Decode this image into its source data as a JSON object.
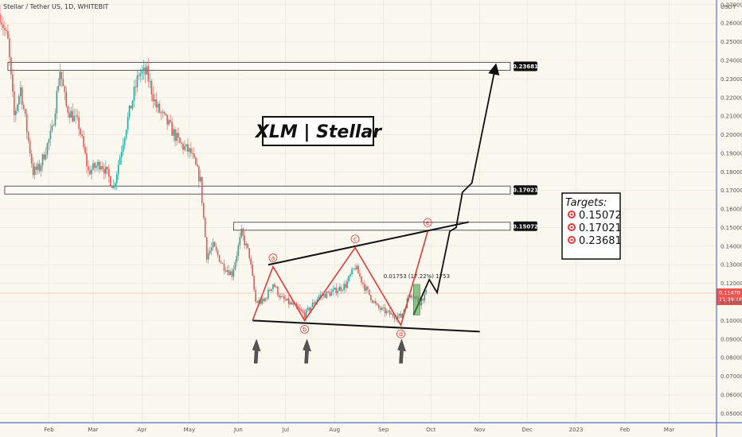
{
  "header": {
    "symbol": "Stellar / Tether US, 1D, WHITEBIT"
  },
  "colors": {
    "up": "#26a69a",
    "down": "#ef5350",
    "wave": "#e53935",
    "background": "#faf7ee",
    "grid": "#e8e4d8",
    "border": "#3f51b5",
    "price_line": "#ef9a9a"
  },
  "chart_data": {
    "type": "candlestick",
    "currency": "USDT",
    "y_ticks": [
      "0.27000",
      "0.26000",
      "0.25000",
      "0.24000",
      "0.23000",
      "0.22000",
      "0.21000",
      "0.20000",
      "0.19000",
      "0.18000",
      "0.17000",
      "0.16000",
      "0.15000",
      "0.14000",
      "0.13000",
      "0.12000",
      "0.11000",
      "0.10000",
      "0.09000",
      "0.08000",
      "0.07000",
      "0.06000",
      "0.05000"
    ],
    "y_range": [
      0.045,
      0.2725
    ],
    "x_ticks": [
      "Feb",
      "Mar",
      "Apr",
      "May",
      "Jun",
      "Jul",
      "Aug",
      "Sep",
      "Oct",
      "Nov",
      "Dec",
      "2023",
      "Feb",
      "Mar"
    ],
    "x_start": "2022-01-01",
    "x_end": "2023-03-31",
    "levels": [
      0.23681,
      0.17021,
      0.15072
    ],
    "level_labels": [
      "0.23681",
      "0.17021",
      "0.15072"
    ],
    "current_price": "0.11470",
    "countdown": "11:39:18",
    "title": "XLM | Stellar",
    "targets_title": "Targets:",
    "targets": [
      "0.15072",
      "0.17021",
      "0.23681"
    ],
    "wave_labels": [
      "a",
      "b",
      "c",
      "d",
      "e"
    ],
    "measurement": "0.01753 (17.22%) 1753",
    "wave_points": [
      {
        "date": "2022-06-10",
        "price": 0.1
      },
      {
        "date": "2022-06-23",
        "price": 0.129
      },
      {
        "date": "2022-07-13",
        "price": 0.1
      },
      {
        "date": "2022-08-14",
        "price": 0.1392
      },
      {
        "date": "2022-09-12",
        "price": 0.0975
      },
      {
        "date": "2022-09-29",
        "price": 0.148
      }
    ],
    "triangle_upper": [
      {
        "date": "2022-06-20",
        "price": 0.13
      },
      {
        "date": "2022-10-25",
        "price": 0.153
      }
    ],
    "triangle_lower": [
      {
        "date": "2022-06-10",
        "price": 0.1
      },
      {
        "date": "2022-11-01",
        "price": 0.094
      }
    ],
    "projection": [
      {
        "date": "2022-09-20",
        "price": 0.103
      },
      {
        "date": "2022-09-30",
        "price": 0.122
      },
      {
        "date": "2022-10-05",
        "price": 0.115
      },
      {
        "date": "2022-10-13",
        "price": 0.148
      },
      {
        "date": "2022-10-17",
        "price": 0.15
      },
      {
        "date": "2022-10-21",
        "price": 0.169
      },
      {
        "date": "2022-10-27",
        "price": 0.174
      },
      {
        "date": "2022-11-11",
        "price": 0.237
      }
    ],
    "arrow_dates": [
      "2022-06-12",
      "2022-07-14",
      "2022-09-12"
    ],
    "anchors": [
      {
        "date": "2022-01-01",
        "price": 0.265
      },
      {
        "date": "2022-01-06",
        "price": 0.25
      },
      {
        "date": "2022-01-10",
        "price": 0.21
      },
      {
        "date": "2022-01-14",
        "price": 0.225
      },
      {
        "date": "2022-01-22",
        "price": 0.18
      },
      {
        "date": "2022-01-26",
        "price": 0.182
      },
      {
        "date": "2022-02-03",
        "price": 0.202
      },
      {
        "date": "2022-02-08",
        "price": 0.235
      },
      {
        "date": "2022-02-12",
        "price": 0.215
      },
      {
        "date": "2022-02-20",
        "price": 0.205
      },
      {
        "date": "2022-02-26",
        "price": 0.18
      },
      {
        "date": "2022-03-06",
        "price": 0.185
      },
      {
        "date": "2022-03-14",
        "price": 0.172
      },
      {
        "date": "2022-03-22",
        "price": 0.205
      },
      {
        "date": "2022-03-30",
        "price": 0.233
      },
      {
        "date": "2022-04-04",
        "price": 0.233
      },
      {
        "date": "2022-04-10",
        "price": 0.215
      },
      {
        "date": "2022-04-18",
        "price": 0.205
      },
      {
        "date": "2022-04-25",
        "price": 0.195
      },
      {
        "date": "2022-05-02",
        "price": 0.19
      },
      {
        "date": "2022-05-08",
        "price": 0.175
      },
      {
        "date": "2022-05-12",
        "price": 0.135
      },
      {
        "date": "2022-05-16",
        "price": 0.14
      },
      {
        "date": "2022-05-22",
        "price": 0.13
      },
      {
        "date": "2022-05-28",
        "price": 0.125
      },
      {
        "date": "2022-06-03",
        "price": 0.147
      },
      {
        "date": "2022-06-08",
        "price": 0.135
      },
      {
        "date": "2022-06-12",
        "price": 0.11
      },
      {
        "date": "2022-06-17",
        "price": 0.11
      },
      {
        "date": "2022-06-23",
        "price": 0.12
      },
      {
        "date": "2022-06-28",
        "price": 0.112
      },
      {
        "date": "2022-07-06",
        "price": 0.108
      },
      {
        "date": "2022-07-13",
        "price": 0.103
      },
      {
        "date": "2022-07-22",
        "price": 0.113
      },
      {
        "date": "2022-07-30",
        "price": 0.115
      },
      {
        "date": "2022-08-08",
        "price": 0.119
      },
      {
        "date": "2022-08-14",
        "price": 0.129
      },
      {
        "date": "2022-08-20",
        "price": 0.118
      },
      {
        "date": "2022-08-28",
        "price": 0.107
      },
      {
        "date": "2022-09-06",
        "price": 0.103
      },
      {
        "date": "2022-09-12",
        "price": 0.102
      },
      {
        "date": "2022-09-18",
        "price": 0.115
      },
      {
        "date": "2022-09-24",
        "price": 0.11
      },
      {
        "date": "2022-09-28",
        "price": 0.1147
      }
    ]
  }
}
